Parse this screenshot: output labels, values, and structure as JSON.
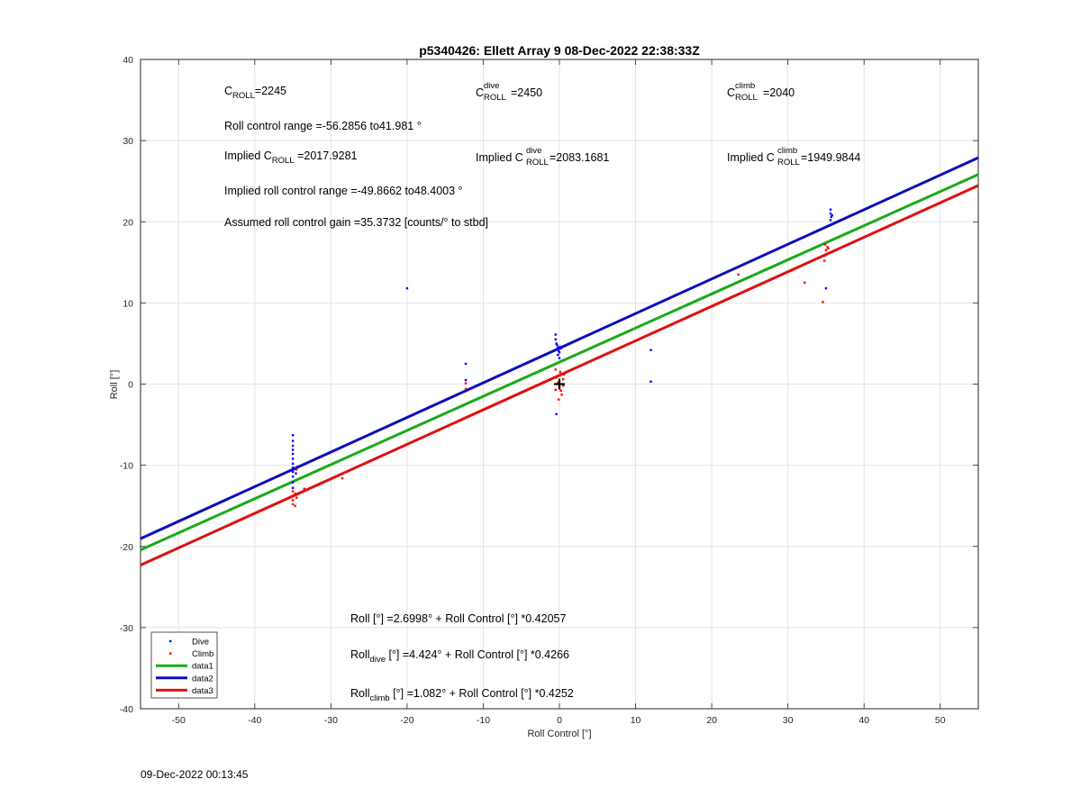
{
  "chart_data": {
    "type": "scatter",
    "title": "p5340426: Ellett Array 9 08-Dec-2022 22:38:33Z",
    "xlabel": "Roll Control [°]",
    "ylabel": "Roll [°]",
    "xlim": [
      -55,
      55
    ],
    "ylim": [
      -40,
      40
    ],
    "xticks": [
      -50,
      -40,
      -30,
      -20,
      -10,
      0,
      10,
      20,
      30,
      40,
      50
    ],
    "yticks": [
      -40,
      -30,
      -20,
      -10,
      0,
      10,
      20,
      30,
      40
    ],
    "grid": true,
    "legend_position": "bottom-left",
    "series": [
      {
        "name": "Dive",
        "kind": "points",
        "color": "#0000ff",
        "points": [
          [
            -35,
            -6.3
          ],
          [
            -35,
            -7
          ],
          [
            -35,
            -7.6
          ],
          [
            -35,
            -8.1
          ],
          [
            -35,
            -8.6
          ],
          [
            -35,
            -9.2
          ],
          [
            -35,
            -9.8
          ],
          [
            -35,
            -10.3
          ],
          [
            -35,
            -10.8
          ],
          [
            -35,
            -11.4
          ],
          [
            -35,
            -12.1
          ],
          [
            -35,
            -12.8
          ],
          [
            -34.6,
            -10.5
          ],
          [
            -34.6,
            -11
          ],
          [
            -34.4,
            -10.2
          ],
          [
            -20,
            11.8
          ],
          [
            -12.3,
            2.5
          ],
          [
            -12.3,
            0.5
          ],
          [
            -0.5,
            6.1
          ],
          [
            -0.5,
            5.5
          ],
          [
            -0.4,
            5
          ],
          [
            -0.3,
            4.8
          ],
          [
            -0.2,
            4.5
          ],
          [
            -0.3,
            4.3
          ],
          [
            -0.1,
            4.1
          ],
          [
            0,
            3.9
          ],
          [
            0.1,
            4.6
          ],
          [
            -0.2,
            3.6
          ],
          [
            0,
            3.2
          ],
          [
            0.2,
            4.4
          ],
          [
            -0.4,
            -3.7
          ],
          [
            12,
            4.2
          ],
          [
            12,
            0.3
          ],
          [
            35,
            11.8
          ],
          [
            35.6,
            21.5
          ],
          [
            35.6,
            21
          ],
          [
            35.7,
            20.6
          ],
          [
            35.6,
            20.2
          ],
          [
            35.8,
            20.8
          ]
        ]
      },
      {
        "name": "Climb",
        "kind": "points",
        "color": "#ff0000",
        "points": [
          [
            -35,
            -13.2
          ],
          [
            -35,
            -13.8
          ],
          [
            -35,
            -14.3
          ],
          [
            -35,
            -14.8
          ],
          [
            -34.7,
            -13.5
          ],
          [
            -34.5,
            -14
          ],
          [
            -34.7,
            -15
          ],
          [
            -34.5,
            -10.5
          ],
          [
            -33.5,
            -12.9
          ],
          [
            -28.5,
            -11.6
          ],
          [
            -12.3,
            0.1
          ],
          [
            -12.3,
            -0.6
          ],
          [
            -0.5,
            1.8
          ],
          [
            -0.4,
            0.8
          ],
          [
            -0.2,
            0.2
          ],
          [
            0,
            -0.4
          ],
          [
            0.2,
            -0.8
          ],
          [
            0.3,
            -1.3
          ],
          [
            0.5,
            0.6
          ],
          [
            0.6,
            1.2
          ],
          [
            -0.5,
            -0.7
          ],
          [
            -0.1,
            -1.9
          ],
          [
            0.5,
            -0.2
          ],
          [
            0.1,
            1.5
          ],
          [
            23.5,
            13.5
          ],
          [
            32.2,
            12.5
          ],
          [
            34.6,
            10.1
          ],
          [
            34.8,
            15.2
          ],
          [
            35,
            16.5
          ],
          [
            35.2,
            16.9
          ],
          [
            34.9,
            17.2
          ],
          [
            35.3,
            16.7
          ],
          [
            34.8,
            15.8
          ]
        ]
      },
      {
        "name": "data1",
        "kind": "line",
        "color": "#1aaa1a",
        "x": [
          -55,
          55
        ],
        "y": [
          -20.43,
          25.83
        ]
      },
      {
        "name": "data2",
        "kind": "line",
        "color": "#0d0dba",
        "x": [
          -55,
          55
        ],
        "y": [
          -19.04,
          27.89
        ]
      },
      {
        "name": "data3",
        "kind": "line",
        "color": "#dd1111",
        "x": [
          -55,
          55
        ],
        "y": [
          -22.3,
          24.47
        ]
      }
    ],
    "origin_marker": [
      0,
      0
    ]
  },
  "annotations": {
    "c_roll": {
      "base": "C",
      "sub": "ROLL",
      "value": "=2245"
    },
    "c_roll_dive": {
      "base": "C",
      "sup": "dive",
      "sub": "ROLL",
      "value": "=2450"
    },
    "c_roll_climb": {
      "base": "C",
      "sup": "climb",
      "sub": "ROLL",
      "value": "=2040"
    },
    "roll_control_range": "Roll control range =-56.2856 to41.981 °",
    "implied_c_roll": {
      "prefix": "Implied C",
      "sub": "ROLL",
      "value": " =2017.9281"
    },
    "implied_c_roll_dive": {
      "prefix": "Implied C",
      "sup": "dive",
      "sub": "ROLL",
      "value": " =2083.1681"
    },
    "implied_c_roll_climb": {
      "prefix": "Implied C",
      "sup": "climb",
      "sub": "ROLL",
      "value": " =1949.9844"
    },
    "implied_range": "Implied roll control range =-49.8662 to48.4003 °",
    "gain": "Assumed roll control gain =35.3732 [counts/° to stbd]",
    "eq_all": "Roll [°] =2.6998° + Roll Control [°] *0.42057",
    "eq_dive": {
      "base": "Roll",
      "sub": "dive",
      "rest": " [°] =4.424° + Roll Control [°] *0.4266"
    },
    "eq_climb": {
      "base": "Roll",
      "sub": "climb",
      "rest": " [°] =1.082° + Roll Control [°] *0.4252"
    }
  },
  "footer_timestamp": "09-Dec-2022 00:13:45"
}
